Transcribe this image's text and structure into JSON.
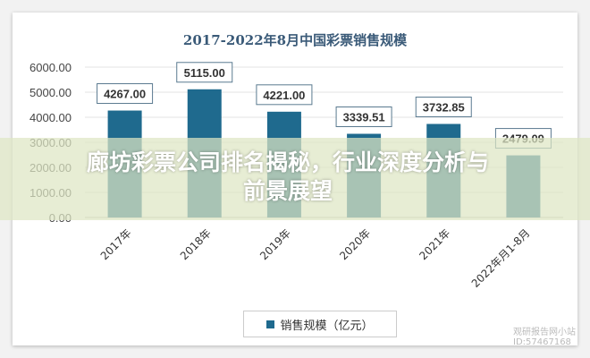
{
  "chart_data": {
    "type": "bar",
    "title": "2017-2022年8月中国彩票销售规模",
    "categories": [
      "2017年",
      "2018年",
      "2019年",
      "2020年",
      "2021年",
      "2022年月1-8月"
    ],
    "series": [
      {
        "name": "销售规模（亿元）",
        "values": [
          4267.0,
          5115.0,
          4221.0,
          3339.51,
          3732.85,
          2479.09
        ]
      }
    ],
    "data_labels": [
      "4267.00",
      "5115.00",
      "4221.00",
      "3339.51",
      "3732.85",
      "2479.09"
    ],
    "yticks": [
      "0.00",
      "1000.00",
      "2000.00",
      "3000.00",
      "4000.00",
      "5000.00",
      "6000.00"
    ],
    "ylim": [
      0,
      6000
    ],
    "grid": true,
    "legend": "bottom",
    "color": "#1f6a8e"
  },
  "overlay": {
    "headline": "廊坊彩票公司排名揭秘，行业深度分析与前景展望"
  },
  "watermark": {
    "line1": "观研报告网小站",
    "line2": "ID:57467168"
  }
}
